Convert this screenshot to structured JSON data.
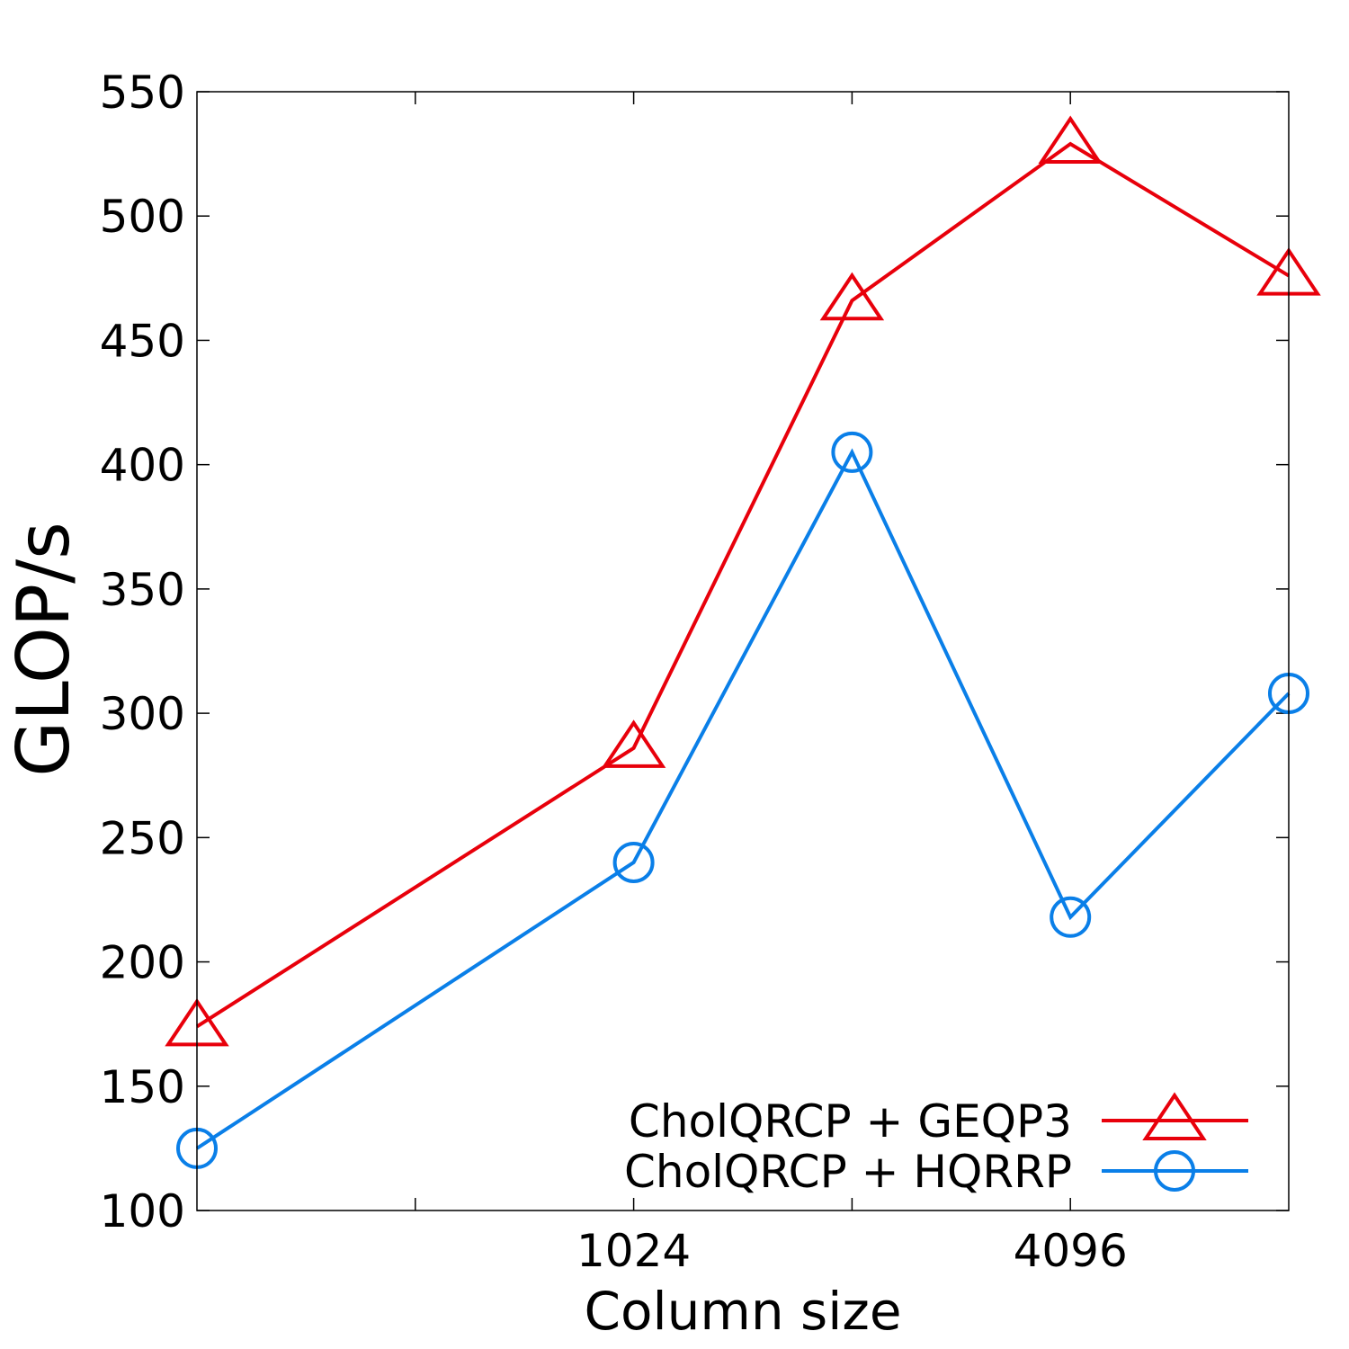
{
  "chart_data": {
    "type": "line",
    "xlabel": "Column size",
    "ylabel": "GLOP/s",
    "x": [
      256,
      1024,
      2048,
      4096,
      8192
    ],
    "x_scale": "log2",
    "xlim": [
      256,
      8192
    ],
    "xticks": [
      {
        "value": 1024,
        "label": "1024"
      },
      {
        "value": 4096,
        "label": "4096"
      }
    ],
    "ylim": [
      100,
      550
    ],
    "yticks": [
      100,
      150,
      200,
      250,
      300,
      350,
      400,
      450,
      500,
      550
    ],
    "grid": false,
    "legend_position": "bottom-right",
    "series": [
      {
        "name": "CholQRCP + GEQP3",
        "marker": "triangle",
        "color": "#e8000b",
        "values": [
          174,
          286,
          466,
          529,
          476
        ]
      },
      {
        "name": "CholQRCP + HQRRP",
        "marker": "circle",
        "color": "#0a7fe8",
        "values": [
          125,
          240,
          405,
          218,
          308
        ]
      }
    ]
  }
}
